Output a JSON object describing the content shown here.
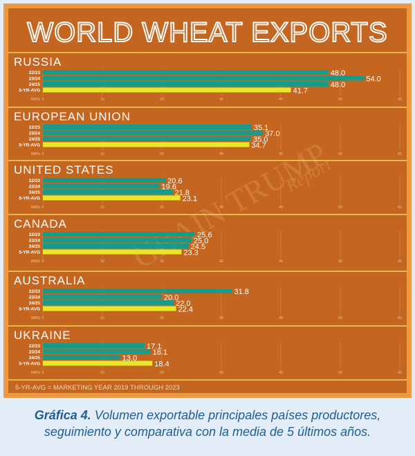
{
  "chart_data": {
    "type": "bar",
    "orientation": "horizontal",
    "title": "WORLD WHEAT EXPORTS",
    "categories": [
      "22/23",
      "23/24",
      "24/25",
      "5-YR-AVG"
    ],
    "unit_label": "MMTs",
    "xlim": [
      0,
      60
    ],
    "ticks": [
      0,
      10,
      20,
      30,
      40,
      50,
      60
    ],
    "grid": true,
    "colors": {
      "background": "#c4661f",
      "frame": "#ea9a43",
      "bar": "#1a9b8a",
      "avg_bar": "#e8e82a",
      "divider": "#f4d25a",
      "text": "#ffffff",
      "grid": "#d98a4a"
    },
    "panels": [
      {
        "name": "RUSSIA",
        "values": [
          48.0,
          54.0,
          48.0,
          41.7
        ],
        "labels": [
          "48.0",
          "54.0",
          "48.0",
          "41.7"
        ]
      },
      {
        "name": "EUROPEAN UNION",
        "values": [
          35.1,
          37.0,
          35.0,
          34.7
        ],
        "labels": [
          "35.1",
          "37.0",
          "35.0",
          "34.7"
        ]
      },
      {
        "name": "UNITED STATES",
        "values": [
          20.6,
          19.6,
          21.8,
          23.1
        ],
        "labels": [
          "20.6",
          "19.6",
          "21.8",
          "23.1"
        ]
      },
      {
        "name": "CANADA",
        "values": [
          25.6,
          25.0,
          24.5,
          23.3
        ],
        "labels": [
          "25.6",
          "25.0",
          "24.5",
          "23.3"
        ]
      },
      {
        "name": "AUSTRALIA",
        "values": [
          31.8,
          20.0,
          22.0,
          22.4
        ],
        "labels": [
          "31.8",
          "20.0",
          "22.0",
          "22.4"
        ]
      },
      {
        "name": "UKRAINE",
        "values": [
          17.1,
          18.1,
          13.0,
          18.4
        ],
        "labels": [
          "17.1",
          "18.1",
          "13.0",
          "18.4"
        ]
      }
    ],
    "footnote": "5-YR-AVG = MARKETING YEAR 2019 THROUGH 2023",
    "watermark": "GRAIN TRUMP Report"
  },
  "caption": {
    "label": "Gráfica 4.",
    "text": " Volumen exportable principales países productores, seguimiento y comparativa con la media de 5 últimos años."
  }
}
